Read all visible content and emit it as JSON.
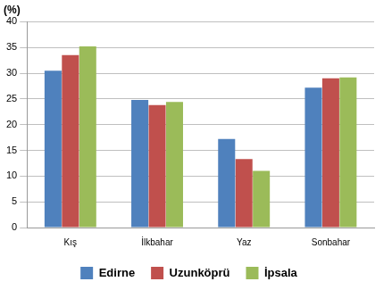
{
  "chart_data": {
    "type": "bar",
    "ylabel": "(%)",
    "categories": [
      "Kış",
      "İlkbahar",
      "Yaz",
      "Sonbahar"
    ],
    "series": [
      {
        "name": "Edirne",
        "color": "#4f81bd",
        "values": [
          30.5,
          24.8,
          17.2,
          27.2
        ]
      },
      {
        "name": "Uzunköprü",
        "color": "#c0504d",
        "values": [
          33.5,
          23.8,
          13.3,
          29.0
        ]
      },
      {
        "name": "İpsala",
        "color": "#9bbb59",
        "values": [
          35.2,
          24.4,
          11.0,
          29.2
        ]
      }
    ],
    "ylim": [
      0,
      40
    ],
    "yticks": [
      0,
      5,
      10,
      15,
      20,
      25,
      30,
      35,
      40
    ],
    "grid": true,
    "legend": "bottom"
  }
}
